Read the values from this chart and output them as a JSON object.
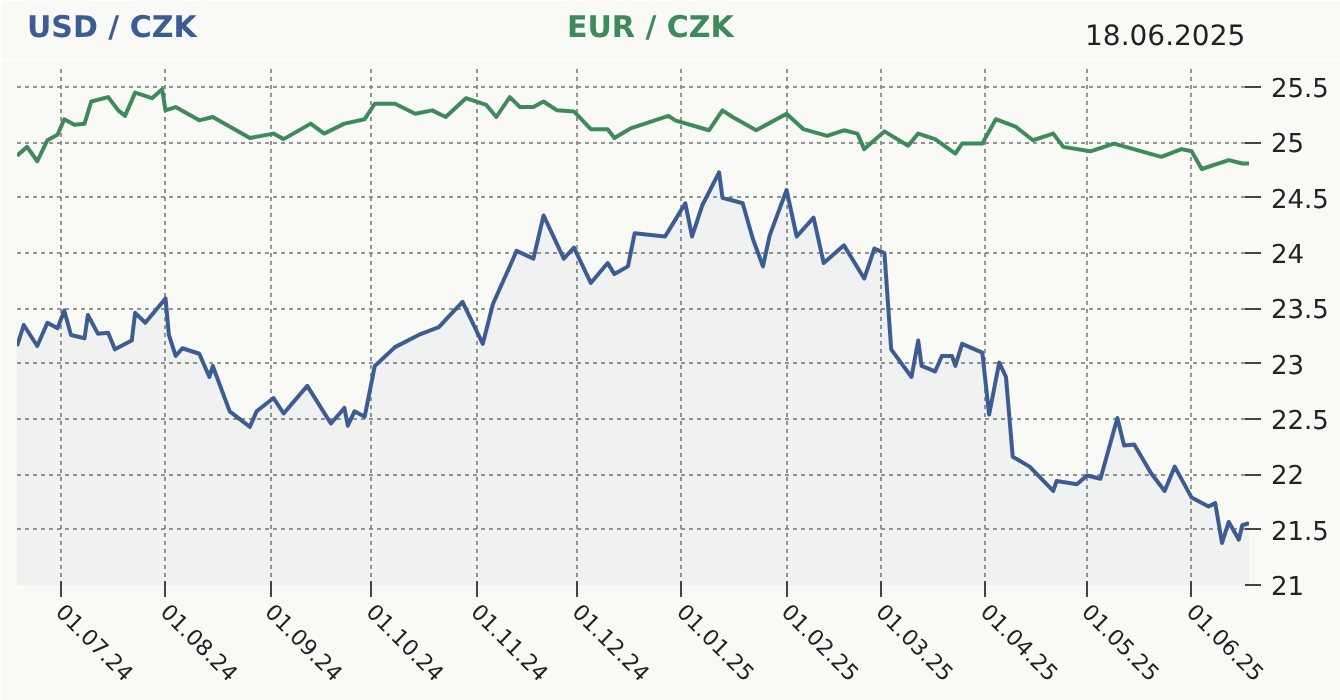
{
  "chart_data": {
    "type": "line",
    "annotations": [
      "18.06.2025"
    ],
    "xlim": [
      "2024-06-18",
      "2025-06-18"
    ],
    "xticks": [
      {
        "value": "2024-07-01",
        "label": "01.07.24"
      },
      {
        "value": "2024-08-01",
        "label": "01.08.24"
      },
      {
        "value": "2024-09-01",
        "label": "01.09.24"
      },
      {
        "value": "2024-10-01",
        "label": "01.10.24"
      },
      {
        "value": "2024-11-01",
        "label": "01.11.24"
      },
      {
        "value": "2024-12-01",
        "label": "01.12.24"
      },
      {
        "value": "2025-01-01",
        "label": "01.01.25"
      },
      {
        "value": "2025-02-01",
        "label": "01.02.25"
      },
      {
        "value": "2025-03-01",
        "label": "01.03.25"
      },
      {
        "value": "2025-04-01",
        "label": "01.04.25"
      },
      {
        "value": "2025-05-01",
        "label": "01.05.25"
      },
      {
        "value": "2025-06-01",
        "label": "01.06.25"
      }
    ],
    "ylim": [
      21,
      25.7
    ],
    "yticks": [
      21,
      21.5,
      22,
      22.5,
      23,
      23.5,
      24,
      24.5,
      25,
      25.5
    ],
    "grid": true,
    "line_style": "solid",
    "series": [
      {
        "name": "USD / CZK",
        "type": "area",
        "color": "#3d5c94",
        "x": [
          "2024-06-18",
          "2024-06-20",
          "2024-06-24",
          "2024-06-27",
          "2024-06-30",
          "2024-07-02",
          "2024-07-04",
          "2024-07-08",
          "2024-07-09",
          "2024-07-12",
          "2024-07-15",
          "2024-07-17",
          "2024-07-22",
          "2024-07-23",
          "2024-07-26",
          "2024-08-01",
          "2024-08-02",
          "2024-08-04",
          "2024-08-06",
          "2024-08-11",
          "2024-08-14",
          "2024-08-15",
          "2024-08-20",
          "2024-08-26",
          "2024-08-28",
          "2024-09-02",
          "2024-09-05",
          "2024-09-12",
          "2024-09-19",
          "2024-09-23",
          "2024-09-24",
          "2024-09-26",
          "2024-09-29",
          "2024-10-02",
          "2024-10-08",
          "2024-10-15",
          "2024-10-21",
          "2024-10-24",
          "2024-10-28",
          "2024-11-03",
          "2024-11-06",
          "2024-11-11",
          "2024-11-13",
          "2024-11-18",
          "2024-11-21",
          "2024-11-27",
          "2024-11-30",
          "2024-12-05",
          "2024-12-10",
          "2024-12-12",
          "2024-12-16",
          "2024-12-18",
          "2024-12-27",
          "2024-12-31",
          "2025-01-02",
          "2025-01-04",
          "2025-01-07",
          "2025-01-12",
          "2025-01-13",
          "2025-01-19",
          "2025-01-22",
          "2025-01-25",
          "2025-01-27",
          "2025-02-01",
          "2025-02-04",
          "2025-02-09",
          "2025-02-12",
          "2025-02-18",
          "2025-02-24",
          "2025-02-27",
          "2025-03-02",
          "2025-03-04",
          "2025-03-10",
          "2025-03-12",
          "2025-03-13",
          "2025-03-17",
          "2025-03-19",
          "2025-03-22",
          "2025-03-23",
          "2025-03-25",
          "2025-03-31",
          "2025-04-02",
          "2025-04-05",
          "2025-04-07",
          "2025-04-09",
          "2025-04-14",
          "2025-04-21",
          "2025-04-22",
          "2025-04-28",
          "2025-05-01",
          "2025-05-05",
          "2025-05-10",
          "2025-05-12",
          "2025-05-15",
          "2025-05-20",
          "2025-05-24",
          "2025-05-27",
          "2025-06-01",
          "2025-06-06",
          "2025-06-08",
          "2025-06-10",
          "2025-06-12",
          "2025-06-15",
          "2025-06-16",
          "2025-06-18"
        ],
        "values": [
          23.16,
          23.35,
          23.16,
          23.37,
          23.32,
          23.48,
          23.26,
          23.23,
          23.44,
          23.27,
          23.28,
          23.13,
          23.21,
          23.46,
          23.37,
          23.59,
          23.26,
          23.07,
          23.14,
          23.09,
          22.88,
          22.98,
          22.57,
          22.43,
          22.57,
          22.69,
          22.55,
          22.8,
          22.46,
          22.6,
          22.44,
          22.57,
          22.52,
          22.98,
          23.15,
          23.26,
          23.33,
          23.43,
          23.56,
          23.18,
          23.54,
          23.88,
          24.02,
          23.95,
          24.34,
          23.95,
          24.05,
          23.73,
          23.91,
          23.81,
          23.88,
          24.18,
          24.15,
          24.35,
          24.45,
          24.15,
          24.43,
          24.73,
          24.5,
          24.45,
          24.13,
          23.88,
          24.16,
          24.57,
          24.15,
          24.32,
          23.91,
          24.07,
          23.77,
          24.04,
          24.0,
          23.13,
          22.88,
          23.21,
          22.98,
          22.93,
          23.07,
          23.07,
          22.98,
          23.18,
          23.1,
          22.54,
          23.01,
          22.88,
          22.16,
          22.07,
          21.85,
          21.94,
          21.91,
          21.99,
          21.96,
          22.51,
          22.26,
          22.27,
          22.01,
          21.85,
          22.07,
          21.79,
          21.71,
          21.74,
          21.38,
          21.57,
          21.41,
          21.54,
          21.56
        ]
      },
      {
        "name": "EUR / CZK",
        "color": "#3f8a5c",
        "x": [
          "2024-06-18",
          "2024-06-21",
          "2024-06-24",
          "2024-06-27",
          "2024-06-30",
          "2024-07-02",
          "2024-07-05",
          "2024-07-08",
          "2024-07-10",
          "2024-07-15",
          "2024-07-18",
          "2024-07-20",
          "2024-07-23",
          "2024-07-28",
          "2024-07-31",
          "2024-08-01",
          "2024-08-04",
          "2024-08-11",
          "2024-08-15",
          "2024-08-26",
          "2024-09-02",
          "2024-09-05",
          "2024-09-13",
          "2024-09-17",
          "2024-09-23",
          "2024-09-29",
          "2024-10-02",
          "2024-10-08",
          "2024-10-14",
          "2024-10-19",
          "2024-10-23",
          "2024-10-29",
          "2024-11-04",
          "2024-11-07",
          "2024-11-11",
          "2024-11-14",
          "2024-11-18",
          "2024-11-21",
          "2024-11-25",
          "2024-11-30",
          "2024-12-05",
          "2024-12-10",
          "2024-12-12",
          "2024-12-17",
          "2024-12-28",
          "2024-12-30",
          "2025-01-09",
          "2025-01-13",
          "2025-01-16",
          "2025-01-23",
          "2025-02-01",
          "2025-02-06",
          "2025-02-13",
          "2025-02-18",
          "2025-02-22",
          "2025-02-24",
          "2025-03-02",
          "2025-03-09",
          "2025-03-12",
          "2025-03-17",
          "2025-03-23",
          "2025-03-25",
          "2025-03-31",
          "2025-04-04",
          "2025-04-10",
          "2025-04-15",
          "2025-04-21",
          "2025-04-24",
          "2025-05-02",
          "2025-05-09",
          "2025-05-23",
          "2025-05-29",
          "2025-06-01",
          "2025-06-04",
          "2025-06-12",
          "2025-06-16",
          "2025-06-18"
        ],
        "values": [
          24.88,
          24.96,
          24.83,
          25.02,
          25.07,
          25.21,
          25.16,
          25.17,
          25.37,
          25.41,
          25.29,
          25.24,
          25.45,
          25.4,
          25.48,
          25.29,
          25.32,
          25.2,
          25.23,
          25.04,
          25.08,
          25.03,
          25.17,
          25.08,
          25.17,
          25.21,
          25.35,
          25.35,
          25.26,
          25.29,
          25.23,
          25.4,
          25.34,
          25.23,
          25.41,
          25.32,
          25.32,
          25.37,
          25.29,
          25.28,
          25.12,
          25.12,
          25.04,
          25.13,
          25.24,
          25.2,
          25.11,
          25.29,
          25.23,
          25.11,
          25.26,
          25.12,
          25.06,
          25.11,
          25.08,
          24.94,
          25.1,
          24.97,
          25.08,
          25.03,
          24.9,
          24.99,
          24.99,
          25.21,
          25.14,
          25.02,
          25.08,
          24.96,
          24.92,
          24.99,
          24.87,
          24.94,
          24.92,
          24.76,
          24.84,
          24.81,
          24.81
        ]
      }
    ]
  }
}
